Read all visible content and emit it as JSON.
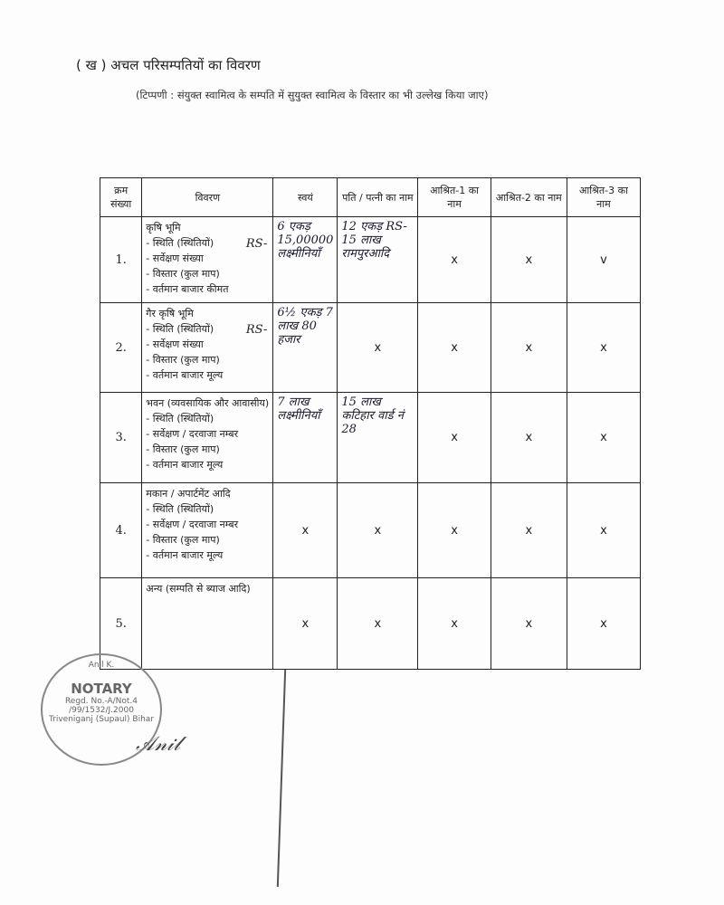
{
  "title": "( ख )  अचल परिसम्पतियों का विवरण",
  "note": "(टिप्पणी : संयुक्त स्वामित्व के सम्पति में सुयुक्त स्वामित्व के विस्तार का भी उल्लेख किया जाए)",
  "headers": [
    "क्रम संख्या",
    "विवरण",
    "स्वयं",
    "पति / पत्नी का नाम",
    "आश्रित-1 का नाम",
    "आश्रित-2 का नाम",
    "आश्रित-3 का नाम"
  ],
  "rows": [
    {
      "num": "1.",
      "desc": [
        "कृषि भूमि",
        "- स्थिति (स्थितियों)",
        "- सर्वेक्षण संख्या",
        "- विस्तार (कुल माप)",
        "- वर्तमान बाजार कीमत"
      ],
      "rs": "RS-",
      "self": "6 एकड़ 15,00000 लक्ष्मीनियाँ",
      "spouse": "12 एकड़ RS-15 लाख रामपुरआदि",
      "d1": "x",
      "d2": "x",
      "d3": "v"
    },
    {
      "num": "2.",
      "desc": [
        "गैर कृषि भूमि",
        "- स्थिति (स्थितियों)",
        "- सर्वेक्षण संख्या",
        "- विस्तार (कुल माप)",
        "- वर्तमान बाजार मूल्य"
      ],
      "rs": "RS-",
      "self": "6½ एकड़ 7 लाख 80 हजार",
      "spouse": "x",
      "d1": "x",
      "d2": "x",
      "d3": "x"
    },
    {
      "num": "3.",
      "desc": [
        "भवन (व्यवसायिक और आवासीय)",
        "- स्थिति (स्थितियों)",
        "- सर्वेक्षण / दरवाजा नम्बर",
        "- विस्तार (कुल माप)",
        "- वर्तमान बाजार मूल्य"
      ],
      "rs": "",
      "self": "7 लाख लक्ष्मीनियाँ",
      "spouse": "15 लाख कटिहार वार्ड नं 28",
      "d1": "x",
      "d2": "x",
      "d3": "x"
    },
    {
      "num": "4.",
      "desc": [
        "मकान / अपार्टमेंट आदि",
        "- स्थिति (स्थितियों)",
        "- सर्वेक्षण / दरवाजा नम्बर",
        "- विस्तार (कुल माप)",
        "- वर्तमान बाजार मूल्य"
      ],
      "rs": "",
      "self": "x",
      "spouse": "x",
      "d1": "x",
      "d2": "x",
      "d3": "x"
    },
    {
      "num": "5.",
      "desc": [
        "अन्य (सम्पति से ब्याज आदि)"
      ],
      "rs": "",
      "self": "x",
      "spouse": "x",
      "d1": "x",
      "d2": "x",
      "d3": "x"
    }
  ],
  "stamp": {
    "name": "Anil K.",
    "title": "NOTARY",
    "reg": "Regd. No.-A/Not.4 /99/1532/J.2000",
    "place": "Triveniganj (Supaul) Bihar"
  },
  "signature": "signature"
}
